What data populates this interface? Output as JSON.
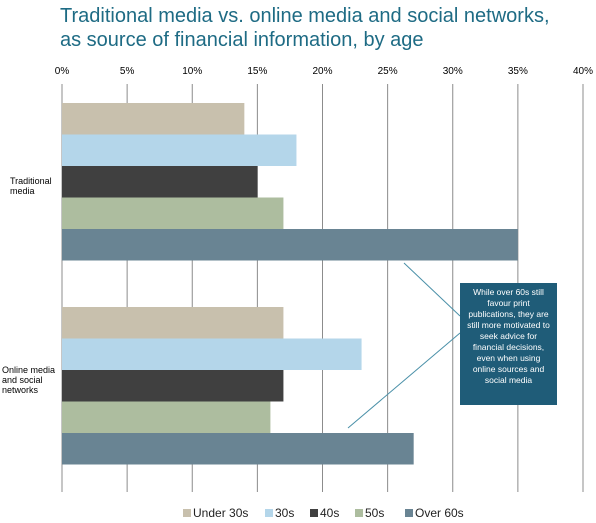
{
  "title": "Traditional media vs. online media and social networks,\n as source of financial information, by age",
  "callout": "While over 60s still favour print publications, they are still more motivated to seek advice for financial decisions, even when using online sources and social media",
  "chart_data": {
    "type": "bar",
    "orientation": "horizontal",
    "title": "Traditional media vs. online media and social networks, as source of financial information, by age",
    "categories": [
      "Traditional media",
      "Online media and social networks"
    ],
    "category_labels": [
      [
        "Traditional",
        "media"
      ],
      [
        "Online media",
        "and social",
        "networks"
      ]
    ],
    "xlim": [
      0,
      40
    ],
    "x_ticks": [
      "0%",
      "5%",
      "10%",
      "15%",
      "20%",
      "25%",
      "30%",
      "35%",
      "40%"
    ],
    "gridlines": true,
    "legend_position": "bottom",
    "series": [
      {
        "name": "Under 30s",
        "color": "#c8c0ad",
        "values": [
          14,
          17
        ]
      },
      {
        "name": "30s",
        "color": "#b4d6ea",
        "values": [
          18,
          23
        ]
      },
      {
        "name": "40s",
        "color": "#404040",
        "values": [
          15,
          17
        ]
      },
      {
        "name": "50s",
        "color": "#adbd9f",
        "values": [
          17,
          16
        ]
      },
      {
        "name": "Over 60s",
        "color": "#698493",
        "values": [
          35,
          27
        ]
      }
    ]
  }
}
